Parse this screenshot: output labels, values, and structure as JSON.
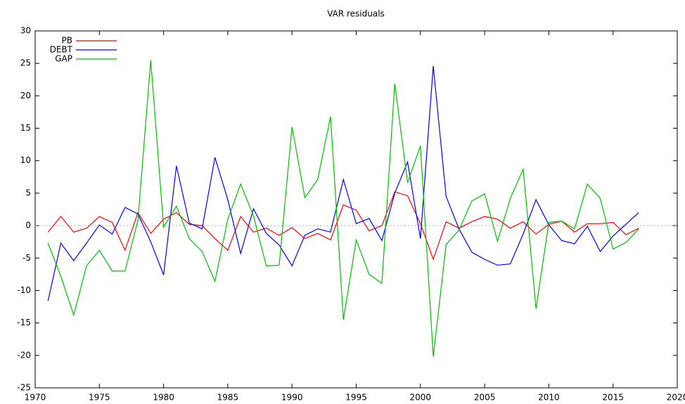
{
  "chart_data": {
    "type": "line",
    "title": "VAR residuals",
    "x": [
      1971,
      1972,
      1973,
      1974,
      1975,
      1976,
      1977,
      1978,
      1979,
      1980,
      1981,
      1982,
      1983,
      1984,
      1985,
      1986,
      1987,
      1988,
      1989,
      1990,
      1991,
      1992,
      1993,
      1994,
      1995,
      1996,
      1997,
      1998,
      1999,
      2000,
      2001,
      2002,
      2003,
      2004,
      2005,
      2006,
      2007,
      2008,
      2009,
      2010,
      2011,
      2012,
      2013,
      2014,
      2015,
      2016,
      2017
    ],
    "series": [
      {
        "name": "PB",
        "color": "#ff0000",
        "values": [
          -1,
          1.4,
          -1,
          -0.4,
          1.4,
          0.5,
          -3.8,
          2,
          -1.2,
          1,
          2,
          0.2,
          0,
          -2,
          -3.8,
          1.4,
          -1,
          -0.4,
          -1.5,
          -0.3,
          -2,
          -1.2,
          -2.2,
          3.2,
          2.4,
          -0.8,
          0,
          5.2,
          4.6,
          0.3,
          -5.2,
          0.6,
          -0.4,
          0.6,
          1.4,
          1,
          -0.4,
          0.6,
          -1.3,
          0.2,
          0.7,
          -1,
          0.3,
          0.3,
          0.5,
          -1.4,
          -0.4
        ]
      },
      {
        "name": "DEBT",
        "color": "#0000ff",
        "values": [
          -11.6,
          -2.7,
          -5.4,
          -2.7,
          0.1,
          -1.3,
          2.8,
          1.8,
          -2.5,
          -7.6,
          9.2,
          0.4,
          -0.5,
          10.5,
          4,
          -4.3,
          2.6,
          -1.2,
          -3,
          -6.2,
          -1.5,
          -0.5,
          -1,
          7.1,
          0.3,
          1.1,
          -2.3,
          5,
          9.8,
          -2,
          24.6,
          4.5,
          -0.5,
          -4.1,
          -5.2,
          -6.1,
          -5.9,
          -1.3,
          4,
          0.1,
          -2.3,
          -2.8,
          -0.1,
          -4,
          -1.6,
          0.2,
          2
        ]
      },
      {
        "name": "GAP",
        "color": "#00c000",
        "values": [
          -2.7,
          -7.8,
          -13.8,
          -6.2,
          -3.8,
          -7,
          -7,
          0.8,
          25.5,
          -0.2,
          3,
          -2,
          -4,
          -8.6,
          1,
          6.4,
          1.5,
          -6.2,
          -6.1,
          15.2,
          4.3,
          7.1,
          16.8,
          -14.5,
          -2.2,
          -7.5,
          -8.9,
          21.9,
          6.6,
          12.3,
          -20.2,
          -2.9,
          -0.7,
          3.8,
          4.9,
          -2.4,
          4.2,
          8.7,
          -12.8,
          0.5,
          0.7,
          -0.5,
          6.4,
          4.2,
          -3.6,
          -2.6,
          -0.5
        ]
      }
    ],
    "xlim": [
      1970,
      2020
    ],
    "xticks": [
      1970,
      1975,
      1980,
      1985,
      1990,
      1995,
      2000,
      2005,
      2010,
      2015,
      2020
    ],
    "ylim": [
      -25,
      30
    ],
    "yticks": [
      -25,
      -20,
      -15,
      -10,
      -5,
      0,
      5,
      10,
      15,
      20,
      25,
      30
    ],
    "legend": "top-left"
  }
}
